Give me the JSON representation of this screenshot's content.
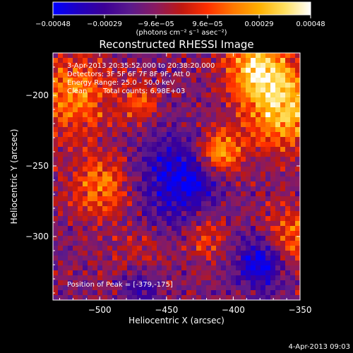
{
  "chart_data": {
    "type": "heatmap",
    "title": "Reconstructed RHESSI Image",
    "xlabel": "Heliocentric X (arcsec)",
    "ylabel": "Heliocentric Y (arcsec)",
    "xlim": [
      -535,
      -350
    ],
    "ylim": [
      -345,
      -170
    ],
    "x_ticks": [
      -500,
      -450,
      -400,
      -350
    ],
    "x_tick_labels": [
      "−500",
      "−450",
      "−400",
      "−350"
    ],
    "y_ticks": [
      -200,
      -250,
      -300
    ],
    "y_tick_labels": [
      "−200",
      "−250",
      "−300"
    ],
    "colorbar": {
      "range": [
        -0.00048,
        0.00048
      ],
      "tick_labels": [
        "−0.00048",
        "−0.00029",
        "−9.6e−05",
        "9.6e−05",
        "0.00029",
        "0.00048"
      ],
      "unit_label": "(photons cm⁻² s⁻¹ asec⁻²)",
      "colors": [
        "#0000ff",
        "#2000c0",
        "#3c0096",
        "#5a1a8c",
        "#8a1a60",
        "#c01810",
        "#ff3000",
        "#ff7800",
        "#ffb000",
        "#ffe060",
        "#ffffff"
      ]
    },
    "info": {
      "time_range": "3-Apr-2013 20:35:52.000 to 20:38:20.000",
      "detectors": "Detectors: 3F 5F 6F 7F 8F 9F, Att 0",
      "energy_range": "Energy Range: 25.0 - 50.0 keV",
      "clean": "Clean",
      "total_counts": "Total counts: 6.98E+03",
      "peak_position": "Position of Peak = [-379,-175]"
    },
    "peak": {
      "x": -379,
      "y": -175
    },
    "hot_regions": [
      {
        "x": -382,
        "y": -180,
        "r": 22,
        "v": 1.0
      },
      {
        "x": -362,
        "y": -210,
        "r": 28,
        "v": 0.95
      },
      {
        "x": -410,
        "y": -240,
        "r": 16,
        "v": 0.9
      },
      {
        "x": -520,
        "y": -200,
        "r": 28,
        "v": 0.7
      },
      {
        "x": -500,
        "y": -265,
        "r": 22,
        "v": 0.65
      },
      {
        "x": -355,
        "y": -300,
        "r": 20,
        "v": 0.6
      },
      {
        "x": -420,
        "y": -300,
        "r": 15,
        "v": 0.45
      },
      {
        "x": -470,
        "y": -320,
        "r": 18,
        "v": 0.5
      },
      {
        "x": -470,
        "y": -205,
        "r": 14,
        "v": 0.5
      }
    ],
    "cold_regions": [
      {
        "x": -440,
        "y": -260,
        "r": 30,
        "v": -0.7
      },
      {
        "x": -380,
        "y": -320,
        "r": 18,
        "v": -0.75
      },
      {
        "x": -470,
        "y": -330,
        "r": 16,
        "v": -0.65
      }
    ],
    "timestamp": "4-Apr-2013 09:03"
  }
}
